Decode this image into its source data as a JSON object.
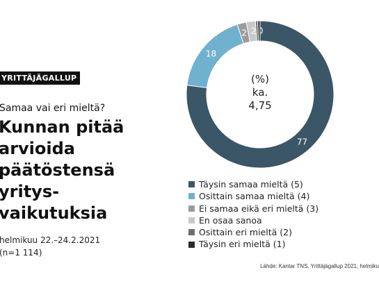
{
  "badge": "YRITTÄJÄGALLUP",
  "question": "Samaa vai eri mieltä?",
  "headline": [
    "Kunnan pitää",
    "arvioida",
    "päätöstensä",
    "yritys-",
    "vaikutuksia"
  ],
  "meta": [
    "helmikuu 22.–24.2.2021",
    "(n=1 114)"
  ],
  "source": "Lähde: Kantar TNS, Yrittäjägallup 2021, helmiku",
  "chart_data": {
    "type": "pie",
    "variant": "donut",
    "center_label": [
      "(%)",
      "ka.",
      "4,75"
    ],
    "start_angle_deg": 0,
    "direction": "clockwise",
    "series": [
      {
        "name": "Täysin samaa mieltä (5)",
        "value": 77,
        "label": "77",
        "color": "#3b5666"
      },
      {
        "name": "Osittain samaa mieltä (4)",
        "value": 18,
        "label": "18",
        "color": "#6fb1ce"
      },
      {
        "name": "Ei samaa eikä eri mieltä (3)",
        "value": 2,
        "label": "2",
        "color": "#9b9b9b"
      },
      {
        "name": "En osaa sanoa",
        "value": 2,
        "label": "2",
        "color": "#c8c8c8"
      },
      {
        "name": "Osittain eri mieltä (2)",
        "value": 0.5,
        "label": "0",
        "color": "#6e6e6e"
      },
      {
        "name": "Täysin eri mieltä (1)",
        "value": 0.5,
        "label": "",
        "color": "#2a2a2a"
      }
    ],
    "legend_placement": "bottom"
  }
}
